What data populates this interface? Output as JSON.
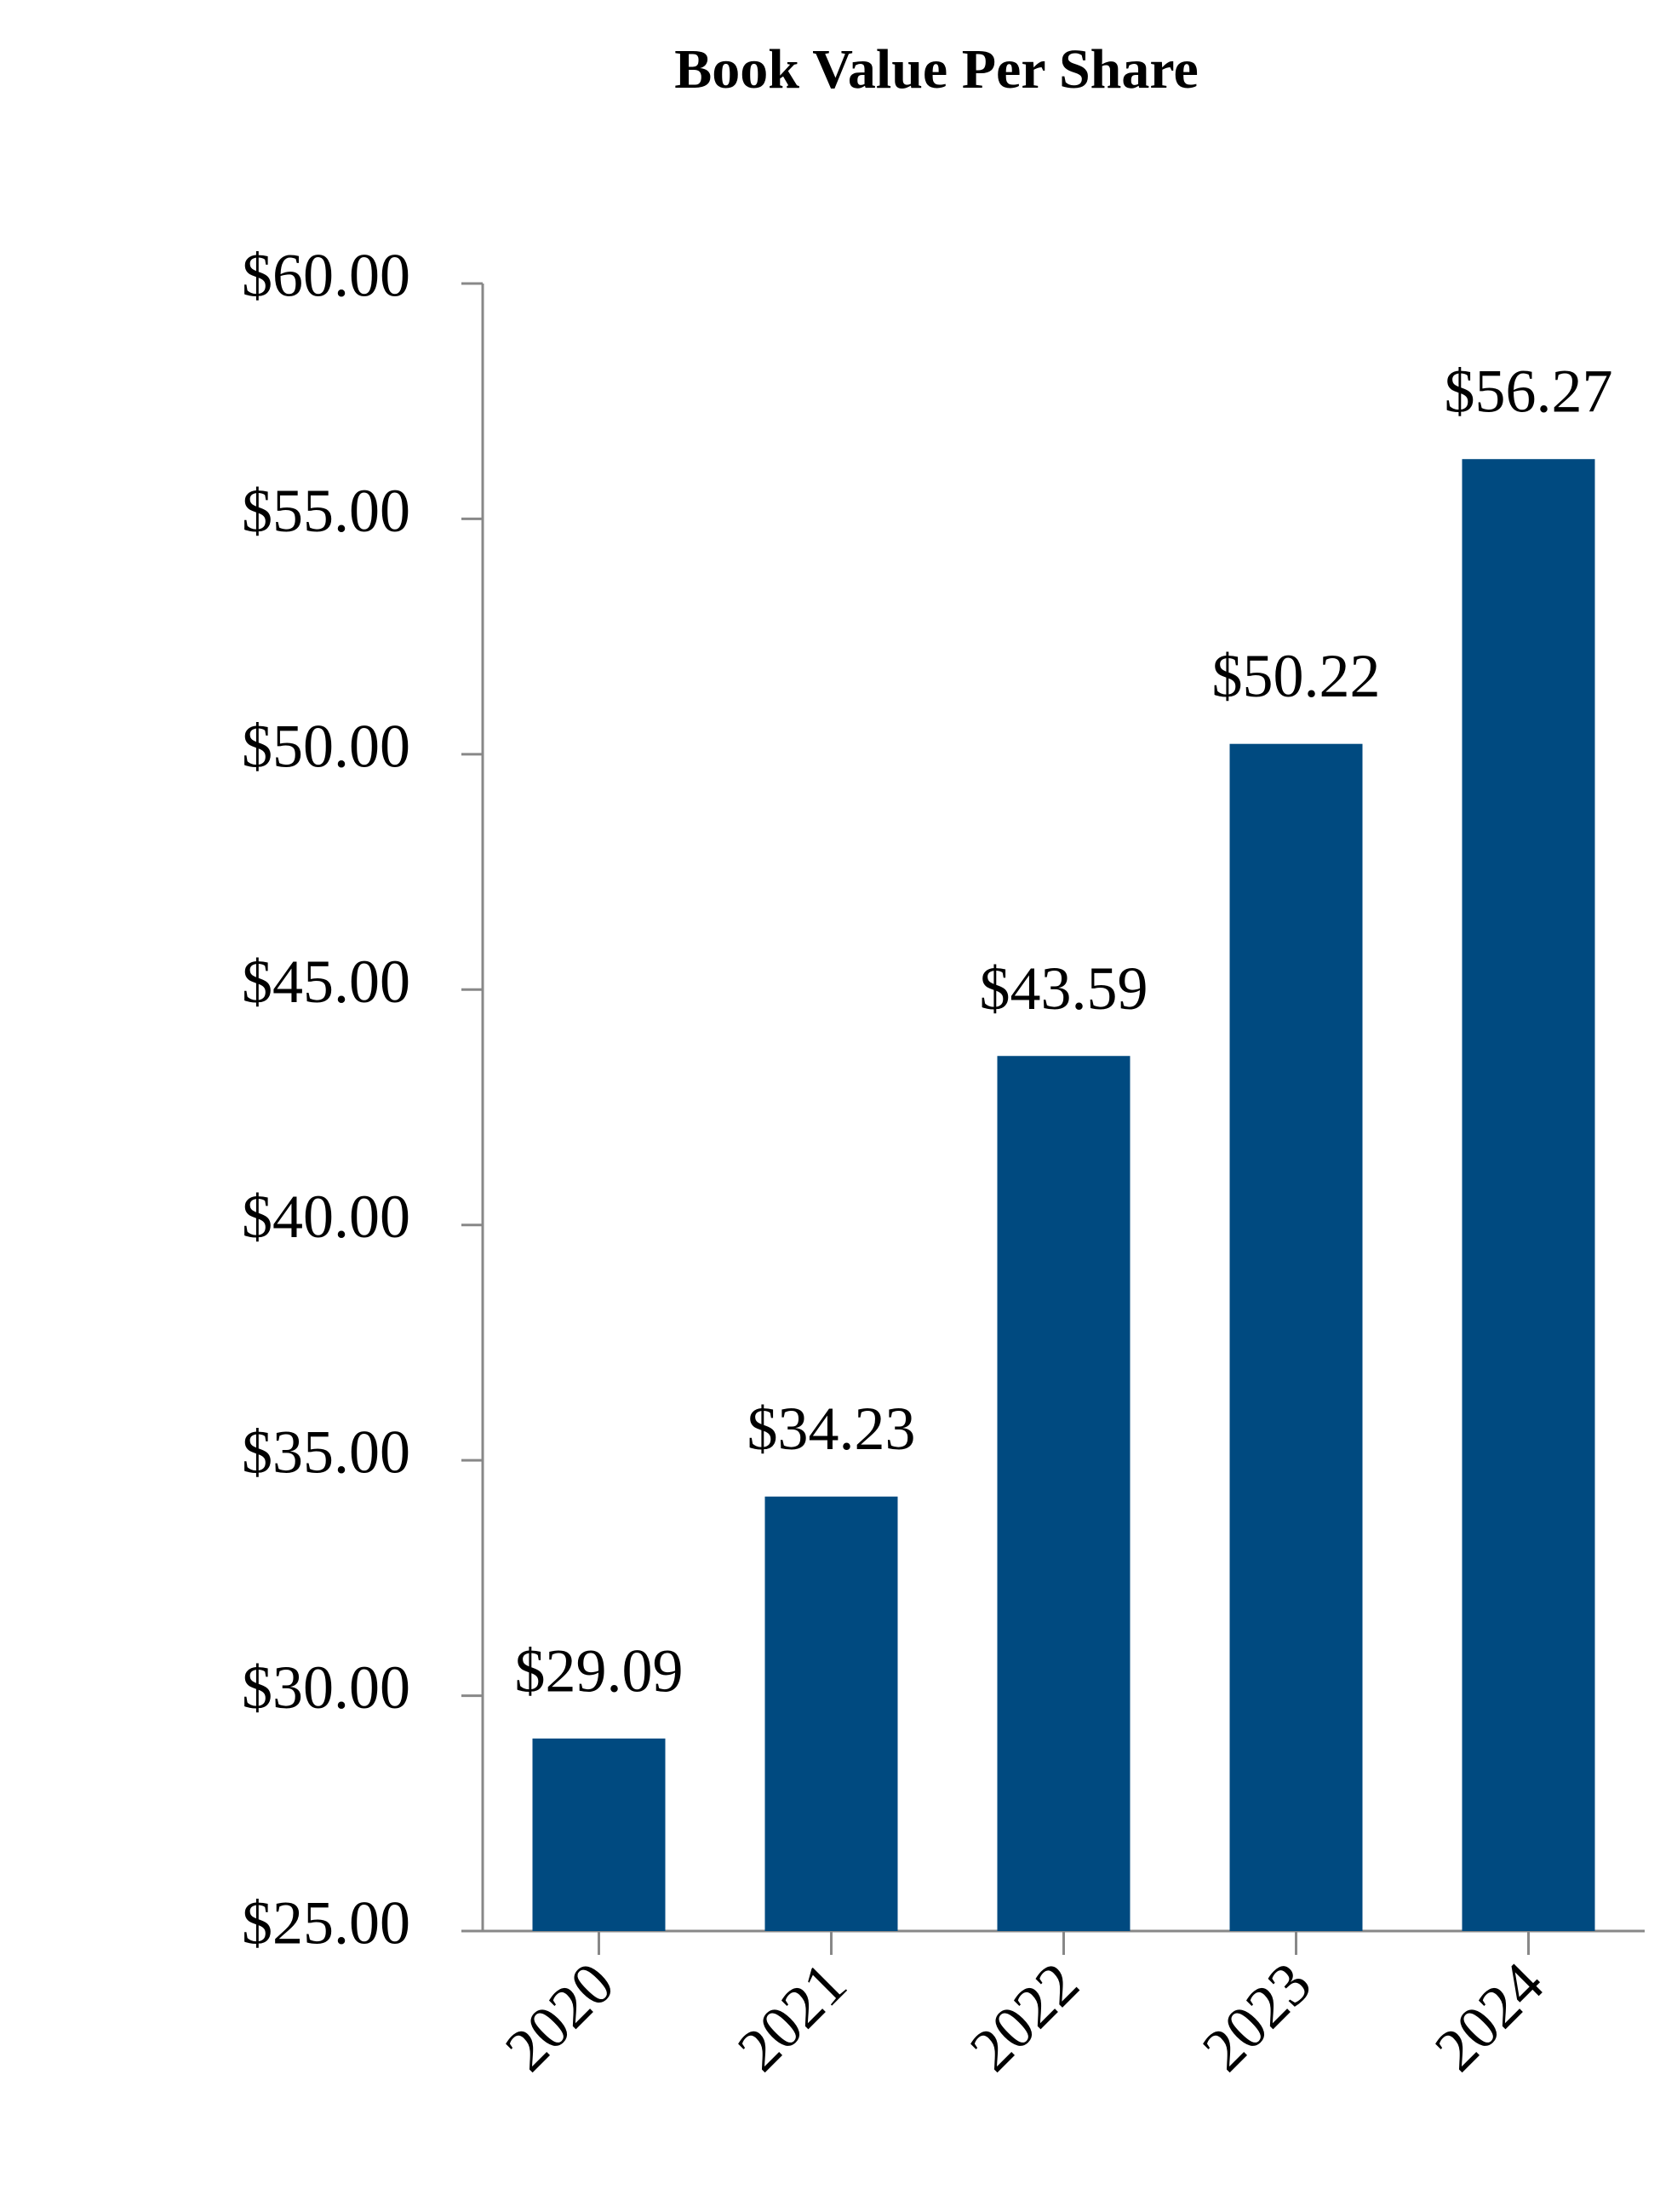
{
  "chart_data": {
    "type": "bar",
    "title": "Book Value Per Share",
    "categories": [
      "2020",
      "2021",
      "2022",
      "2023",
      "2024"
    ],
    "values": [
      29.09,
      34.23,
      43.59,
      50.22,
      56.27
    ],
    "value_labels": [
      "$29.09",
      "$34.23",
      "$43.59",
      "$50.22",
      "$56.27"
    ],
    "color": "#004a80",
    "ylim": [
      25,
      60
    ],
    "yticks": [
      {
        "value": 25,
        "label": "$25.00"
      },
      {
        "value": 30,
        "label": "$30.00"
      },
      {
        "value": 35,
        "label": "$35.00"
      },
      {
        "value": 40,
        "label": "$40.00"
      },
      {
        "value": 45,
        "label": "$45.00"
      },
      {
        "value": 50,
        "label": "$50.00"
      },
      {
        "value": 55,
        "label": "$55.00"
      },
      {
        "value": 60,
        "label": "$60.00"
      }
    ],
    "grid": false
  }
}
